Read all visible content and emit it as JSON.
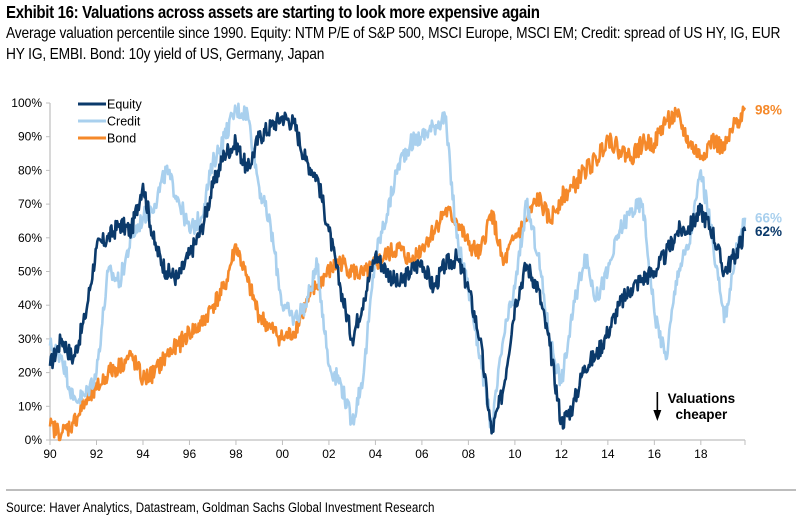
{
  "header": {
    "title": "Exhibit 16: Valuations across assets are starting to look more expensive again",
    "subtitle": "Average valuation percentile since 1990. Equity: NTM P/E of S&P 500, MSCI Europe, MSCI EM; Credit: spread of US HY, IG, EUR HY IG, EMBI. Bond: 10y yield of US, Germany, Japan"
  },
  "footer": {
    "source": "Source: Haver Analytics, Datastream, Goldman Sachs Global Investment Research"
  },
  "chart_data": {
    "type": "line",
    "title": "Valuations across assets are starting to look more expensive again",
    "xlabel": "",
    "ylabel": "",
    "xlim": [
      1990,
      2019.9
    ],
    "ylim": [
      0,
      100
    ],
    "grid": false,
    "legend_position": "top-left",
    "x_tick_values": [
      1990,
      1992,
      1994,
      1996,
      1998,
      2000,
      2002,
      2004,
      2006,
      2008,
      2010,
      2012,
      2014,
      2016,
      2018
    ],
    "x_tick_labels": [
      "90",
      "92",
      "94",
      "96",
      "98",
      "00",
      "02",
      "04",
      "06",
      "08",
      "10",
      "12",
      "14",
      "16",
      "18"
    ],
    "y_tick_values": [
      0,
      10,
      20,
      30,
      40,
      50,
      60,
      70,
      80,
      90,
      100
    ],
    "y_tick_labels": [
      "0%",
      "10%",
      "20%",
      "30%",
      "40%",
      "50%",
      "60%",
      "70%",
      "80%",
      "90%",
      "100%"
    ],
    "x": [
      1990.0,
      1990.5,
      1991.0,
      1991.5,
      1992.0,
      1992.5,
      1993.0,
      1993.5,
      1994.0,
      1994.5,
      1995.0,
      1995.5,
      1996.0,
      1996.5,
      1997.0,
      1997.5,
      1998.0,
      1998.5,
      1999.0,
      1999.5,
      2000.0,
      2000.5,
      2001.0,
      2001.5,
      2002.0,
      2002.5,
      2003.0,
      2003.5,
      2004.0,
      2004.5,
      2005.0,
      2005.5,
      2006.0,
      2006.5,
      2007.0,
      2007.5,
      2008.0,
      2008.5,
      2009.0,
      2009.5,
      2010.0,
      2010.5,
      2011.0,
      2011.5,
      2012.0,
      2012.5,
      2013.0,
      2013.5,
      2014.0,
      2014.5,
      2015.0,
      2015.5,
      2016.0,
      2016.5,
      2017.0,
      2017.5,
      2018.0,
      2018.5,
      2019.0,
      2019.5,
      2019.9
    ],
    "series": [
      {
        "name": "Equity",
        "color": "#0b3a6b",
        "end_label": "62%",
        "values": [
          22,
          30,
          24,
          36,
          57,
          60,
          64,
          62,
          76,
          58,
          50,
          48,
          55,
          62,
          75,
          85,
          88,
          80,
          90,
          93,
          96,
          94,
          83,
          78,
          62,
          45,
          30,
          42,
          55,
          50,
          46,
          50,
          53,
          45,
          52,
          54,
          45,
          30,
          2,
          15,
          40,
          52,
          45,
          28,
          5,
          10,
          22,
          25,
          32,
          40,
          45,
          48,
          50,
          55,
          62,
          63,
          68,
          62,
          50,
          55,
          62
        ]
      },
      {
        "name": "Credit",
        "color": "#a9d0ee",
        "end_label": "66%",
        "values": [
          28,
          25,
          12,
          13,
          20,
          50,
          47,
          60,
          66,
          70,
          80,
          72,
          62,
          66,
          82,
          90,
          98,
          97,
          75,
          63,
          40,
          36,
          40,
          52,
          22,
          17,
          5,
          20,
          55,
          67,
          82,
          88,
          90,
          93,
          96,
          60,
          45,
          25,
          3,
          30,
          45,
          70,
          55,
          30,
          17,
          38,
          55,
          42,
          50,
          62,
          68,
          70,
          38,
          24,
          50,
          58,
          80,
          60,
          35,
          55,
          66
        ]
      },
      {
        "name": "Bond",
        "color": "#f5892a",
        "end_label": "98%",
        "values": [
          4,
          2,
          5,
          11,
          15,
          20,
          22,
          25,
          18,
          20,
          25,
          28,
          32,
          34,
          40,
          45,
          58,
          47,
          37,
          33,
          30,
          32,
          40,
          46,
          50,
          53,
          50,
          49,
          52,
          55,
          57,
          53,
          57,
          62,
          68,
          65,
          58,
          55,
          68,
          52,
          60,
          65,
          72,
          65,
          72,
          75,
          80,
          83,
          90,
          86,
          84,
          88,
          88,
          95,
          96,
          88,
          84,
          89,
          86,
          94,
          98
        ]
      }
    ],
    "annotations": [
      {
        "text_line1": "Valuations",
        "text_line2": "cheaper",
        "arrow": "down",
        "x": 2016.0
      }
    ]
  }
}
